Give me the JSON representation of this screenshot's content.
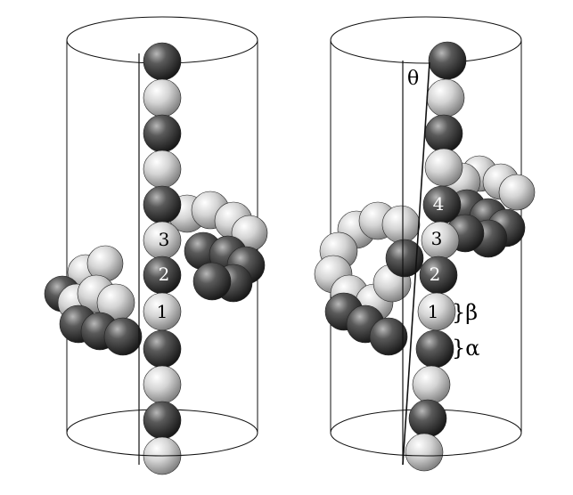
{
  "figure": {
    "left_panel": {
      "sphere_labels": [
        "3",
        "2",
        "1"
      ]
    },
    "right_panel": {
      "sphere_labels": [
        "4",
        "3",
        "2",
        "1"
      ],
      "angle_label": "θ",
      "bracket_labels": [
        "}β",
        "}α"
      ]
    },
    "colors": {
      "dark_sphere": "#3a3a3a",
      "light_sphere": "#d2d2d2",
      "outline": "#111111"
    }
  }
}
